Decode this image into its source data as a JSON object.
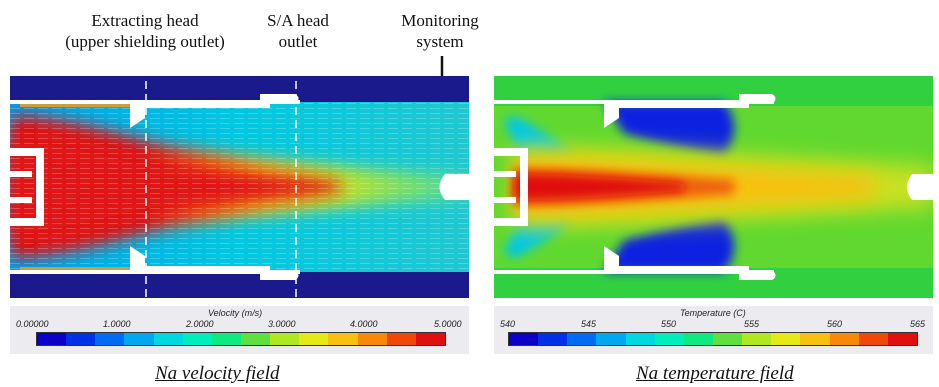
{
  "annotations": {
    "extracting_head_line1": "Extracting head",
    "extracting_head_line2": "(upper shielding outlet)",
    "sa_head_line1": "S/A head",
    "sa_head_line2": "outlet",
    "monitoring_line1": "Monitoring",
    "monitoring_line2": "system"
  },
  "velocity_panel": {
    "colorbar_title": "Velocity (m/s)",
    "ticks": [
      "0.00000",
      "1.0000",
      "2.0000",
      "3.0000",
      "4.0000",
      "5.0000"
    ],
    "caption": "Na velocity field"
  },
  "temperature_panel": {
    "colorbar_title": "Temperature (C)",
    "ticks": [
      "540",
      "545",
      "550",
      "555",
      "560",
      "565"
    ],
    "caption": "Na temperature field"
  },
  "colormap": [
    "#0a00c8",
    "#0030e8",
    "#006cf4",
    "#00a8f0",
    "#00d8e0",
    "#00eebc",
    "#10e880",
    "#60e040",
    "#b0e820",
    "#e8e818",
    "#f8c010",
    "#f88808",
    "#f04808",
    "#e01010"
  ]
}
